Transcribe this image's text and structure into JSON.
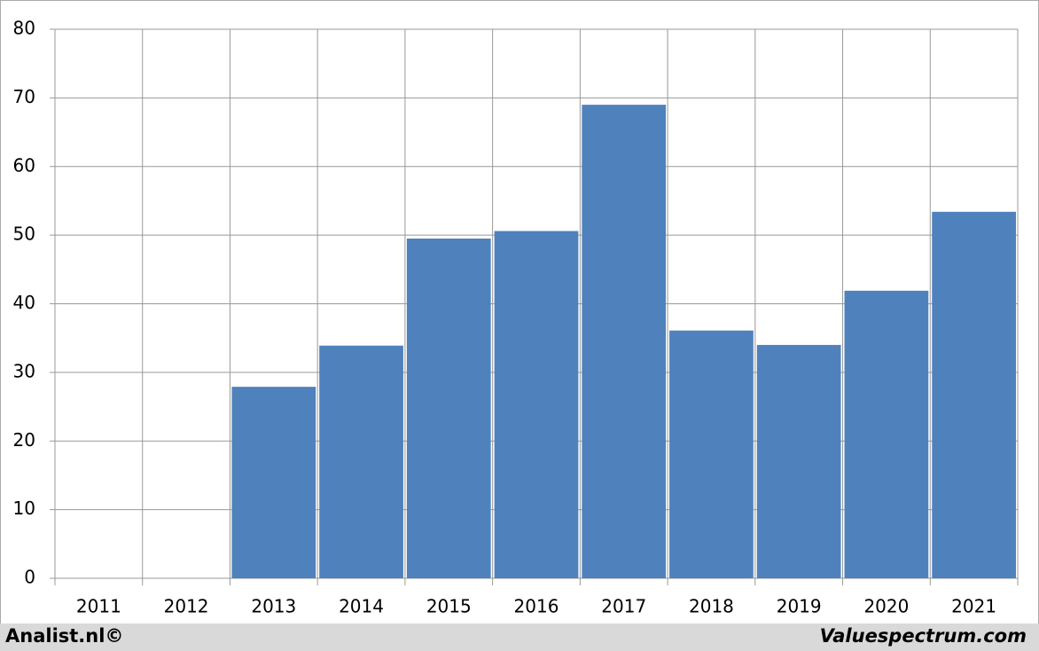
{
  "chart_data": {
    "type": "bar",
    "categories": [
      "2011",
      "2012",
      "2013",
      "2014",
      "2015",
      "2016",
      "2017",
      "2018",
      "2019",
      "2020",
      "2021"
    ],
    "values": [
      null,
      null,
      27.9,
      33.9,
      49.5,
      50.6,
      69,
      36.1,
      34,
      41.9,
      53.4
    ],
    "color": "#4f81bd",
    "ylim": [
      0,
      80
    ],
    "yticks": [
      0,
      10,
      20,
      30,
      40,
      50,
      60,
      70,
      80
    ],
    "grid": true,
    "source_left": "Analist.nl©",
    "source_right": "Valuespectrum.com"
  }
}
